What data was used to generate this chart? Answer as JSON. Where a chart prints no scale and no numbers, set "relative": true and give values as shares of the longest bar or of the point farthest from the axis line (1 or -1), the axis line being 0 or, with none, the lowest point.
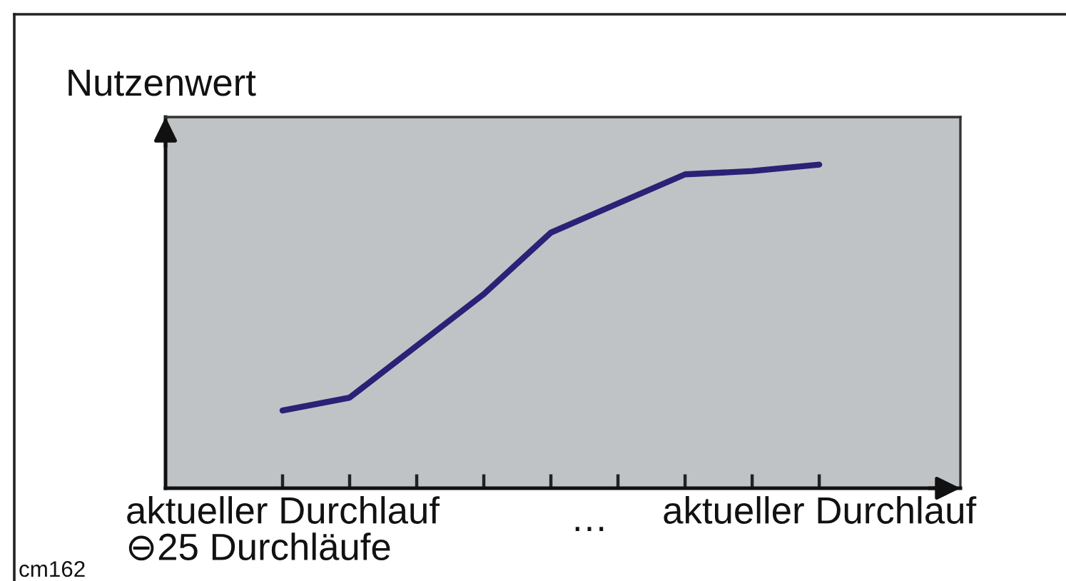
{
  "chart_data": {
    "type": "line",
    "ylabel": "Nutzenwert",
    "relative": true,
    "categories": [
      "aktueller Durchlauf\n⊖25 Durchläufe",
      null,
      null,
      null,
      null,
      null,
      null,
      null,
      "aktueller Durchlauf"
    ],
    "values": [
      0.24,
      0.28,
      0.44,
      0.6,
      0.79,
      0.88,
      0.97,
      0.98,
      1
    ],
    "color": "#2b2176",
    "annotations": [
      "…",
      "cm162"
    ]
  }
}
